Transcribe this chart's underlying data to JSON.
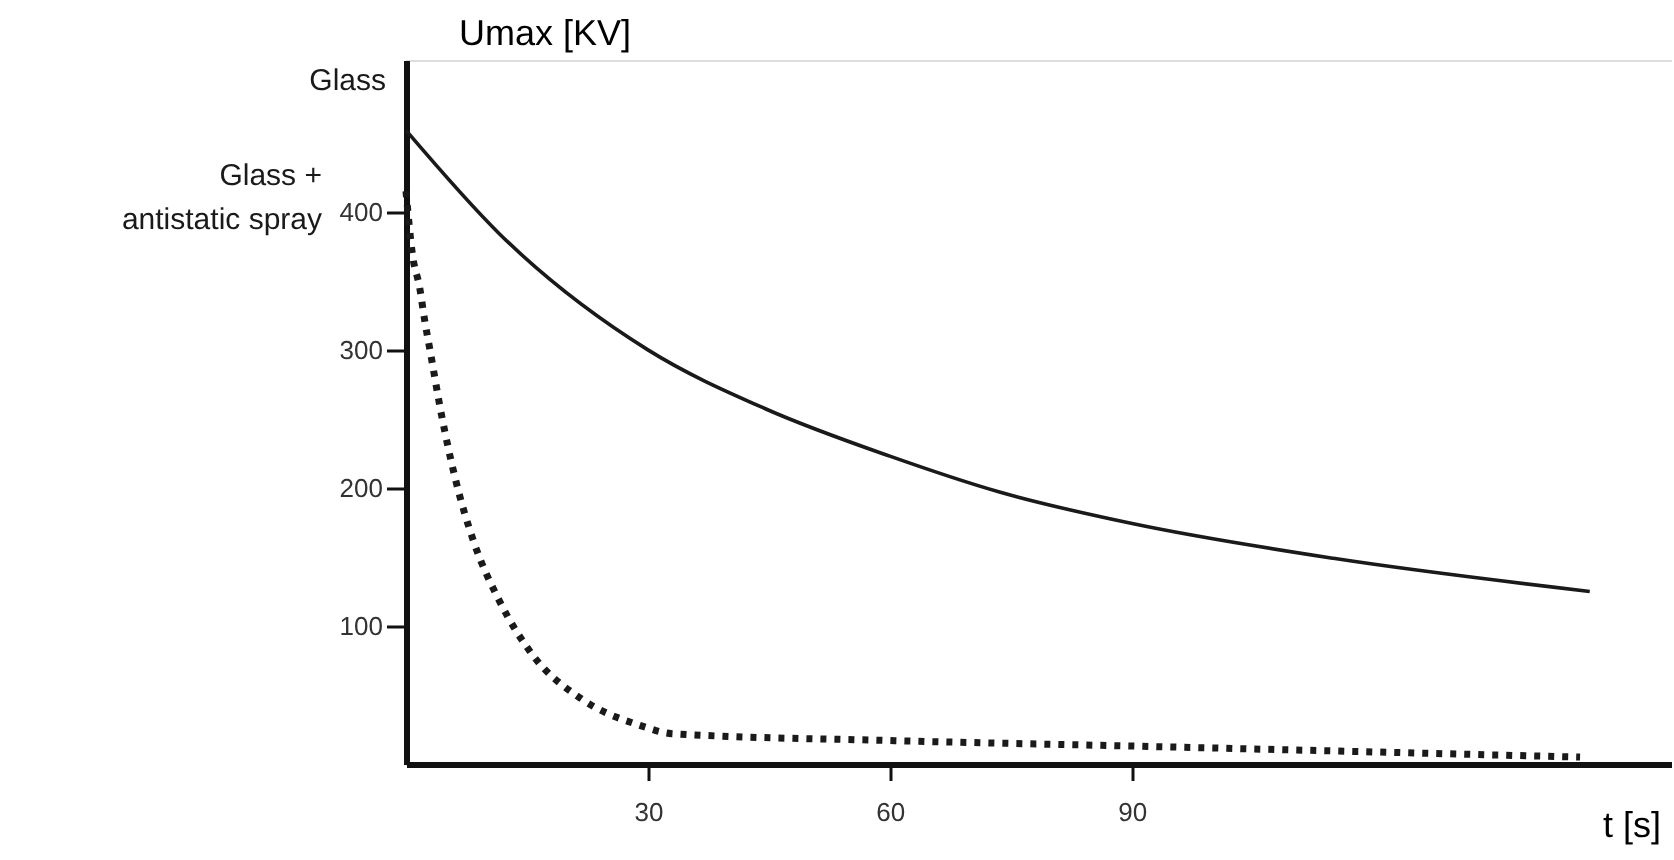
{
  "chart_data": {
    "type": "line",
    "xlabel": "t [s]",
    "ylabel": "Umax [KV]",
    "xlim": [
      0,
      157
    ],
    "ylim": [
      0,
      510
    ],
    "xticks": [
      30,
      60,
      90
    ],
    "yticks": [
      100,
      200,
      300,
      400
    ],
    "grid": false,
    "legend": false,
    "marker": "none",
    "series": [
      {
        "name": "Glass",
        "color": "#1a1a1a",
        "line_style": "solid",
        "x": [
          0,
          11.6,
          30,
          44.7,
          60,
          73.6,
          90.2,
          115,
          146.8
        ],
        "values": [
          459,
          384,
          300,
          257,
          223,
          197,
          174,
          149,
          125
        ]
      },
      {
        "name": "Glass + antistatic spray",
        "color": "#1a1a1a",
        "line_style": "dotted",
        "x": [
          0,
          0.8,
          1.7,
          2.3,
          3,
          4.4,
          6.1,
          8.4,
          11.6,
          15.7,
          21.8,
          29,
          33,
          60,
          90,
          145.6
        ],
        "values": [
          415,
          369,
          345,
          322,
          299,
          253,
          207,
          161,
          118,
          79,
          47,
          28,
          22,
          17,
          13,
          5
        ]
      }
    ]
  }
}
